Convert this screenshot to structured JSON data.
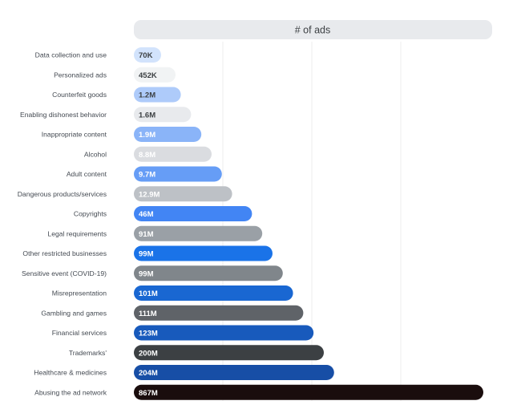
{
  "chart_data": {
    "type": "bar",
    "orientation": "horizontal",
    "column_header": "# of ads",
    "categories": [
      "Data collection and use",
      "Personalized ads",
      "Counterfeit goods",
      "Enabling dishonest behavior",
      "Inappropriate content",
      "Alcohol",
      "Adult content",
      "Dangerous products/services",
      "Copyrights",
      "Legal requirements",
      "Other restricted businesses",
      "Sensitive event (COVID-19)",
      "Misrepresentation",
      "Gambling and games",
      "Financial services",
      "Trademarks'",
      "Healthcare & medicines",
      "Abusing the ad network"
    ],
    "values": [
      70000,
      452000,
      1200000,
      1600000,
      1900000,
      8800000,
      9700000,
      12900000,
      46000000,
      91000000,
      99000000,
      99000000,
      101000000,
      111000000,
      123000000,
      200000000,
      204000000,
      867000000
    ],
    "value_labels": [
      "70K",
      "452K",
      "1.2M",
      "1.6M",
      "1.9M",
      "8.8M",
      "9.7M",
      "12.9M",
      "46M",
      "91M",
      "99M",
      "99M",
      "101M",
      "111M",
      "123M",
      "200M",
      "204M",
      "867M"
    ],
    "bar_colors": [
      "#d2e3fc",
      "#f1f3f4",
      "#aecbfa",
      "#e8eaed",
      "#8ab4f8",
      "#dadce0",
      "#669df6",
      "#bdc1c6",
      "#4285f4",
      "#9aa0a6",
      "#1a73e8",
      "#80868b",
      "#1967d2",
      "#5f6368",
      "#185abc",
      "#3c4043",
      "#174ea6",
      "#1a0d0d"
    ],
    "label_colors": [
      "#3c4043",
      "#3c4043",
      "#3c4043",
      "#3c4043",
      "#ffffff",
      "#ffffff",
      "#ffffff",
      "#ffffff",
      "#ffffff",
      "#ffffff",
      "#ffffff",
      "#ffffff",
      "#ffffff",
      "#ffffff",
      "#ffffff",
      "#ffffff",
      "#ffffff",
      "#ffffff"
    ],
    "grid": true,
    "legend": "none"
  }
}
